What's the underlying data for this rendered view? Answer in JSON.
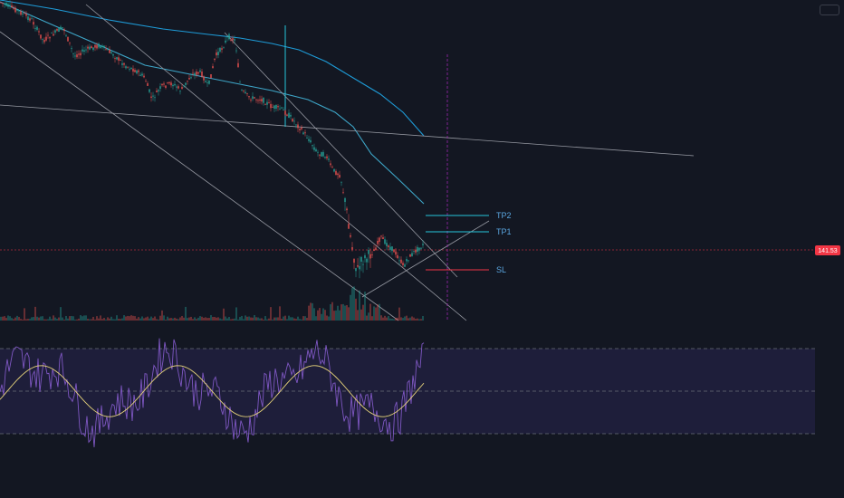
{
  "chart_data": {
    "type": "line",
    "title": "",
    "xlabel": "",
    "ylabel": "",
    "grid": false,
    "price_axis": {
      "last_price_label": "141.53",
      "last_price_color": "#f23645"
    },
    "levels": [
      {
        "name": "TP2",
        "color": "#26c6da"
      },
      {
        "name": "TP1",
        "color": "#26c6da"
      },
      {
        "name": "SL",
        "color": "#f23645"
      }
    ],
    "moving_averages": [
      {
        "color": "#1e9bd7"
      },
      {
        "color": "#3ea7c9"
      }
    ],
    "volume": {
      "up_color": "#26a69a",
      "down_color": "#ef5350"
    },
    "rsi_panel": {
      "band_upper": 70,
      "band_mid": 50,
      "band_lower": 30,
      "band_fill": "#1e1e3a",
      "rsi_color": "#7e57c2",
      "signal_color": "#e6d37a"
    },
    "colors": {
      "background": "#131722",
      "candle_up": "#26a69a",
      "candle_down": "#ef5350",
      "trendline": "#9598a1",
      "vertical_marker": "#9c27b0"
    }
  }
}
